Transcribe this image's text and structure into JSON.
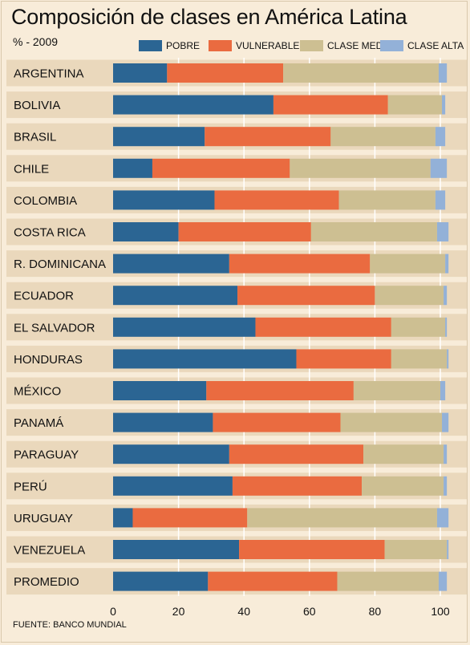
{
  "title": "Composición de clases en América Latina",
  "subtitle": "% - 2009",
  "source": "FUENTE: BANCO MUNDIAL",
  "colors": {
    "background": "#f8ecd9",
    "row_band": "#ead8bc",
    "gridline": "#ffffff"
  },
  "chart_data": {
    "type": "bar",
    "orientation": "horizontal",
    "stacked": true,
    "title": "Composición de clases en América Latina",
    "subtitle": "% - 2009",
    "xlim": [
      0,
      100
    ],
    "xticks": [
      0,
      20,
      40,
      60,
      80,
      100
    ],
    "grid": true,
    "legend_position": "top",
    "categories": [
      "ARGENTINA",
      "BOLIVIA",
      "BRASIL",
      "CHILE",
      "COLOMBIA",
      "COSTA RICA",
      "R. DOMINICANA",
      "ECUADOR",
      "EL SALVADOR",
      "HONDURAS",
      "MÉXICO",
      "PANAMÁ",
      "PARAGUAY",
      "PERÚ",
      "URUGUAY",
      "VENEZUELA",
      "PROMEDIO"
    ],
    "series": [
      {
        "name": "POBRE",
        "color": "#2b6593",
        "values": [
          16.5,
          49,
          28,
          12,
          31,
          20,
          35.5,
          38,
          43.5,
          56,
          28.5,
          30.5,
          35.5,
          36.5,
          6,
          38.5,
          29
        ]
      },
      {
        "name": "VULNERABLE",
        "color": "#ea6b40",
        "values": [
          35.5,
          35,
          38.5,
          42,
          38,
          40.5,
          43,
          42,
          41.5,
          29,
          45,
          39,
          41,
          39.5,
          35,
          44.5,
          39.5
        ]
      },
      {
        "name": "CLASE MEDIA",
        "color": "#cdbf92",
        "values": [
          47.5,
          16.5,
          32,
          43,
          29.5,
          38.5,
          23,
          21,
          16.5,
          17,
          26.5,
          31,
          24.5,
          25,
          58,
          19,
          31
        ]
      },
      {
        "name": "CLASE ALTA",
        "color": "#93b1d8",
        "values": [
          2.5,
          1,
          3,
          5,
          3,
          3.5,
          1,
          1,
          0.5,
          0.5,
          1.5,
          2,
          1,
          1,
          3.5,
          0.5,
          2.5
        ]
      }
    ]
  }
}
